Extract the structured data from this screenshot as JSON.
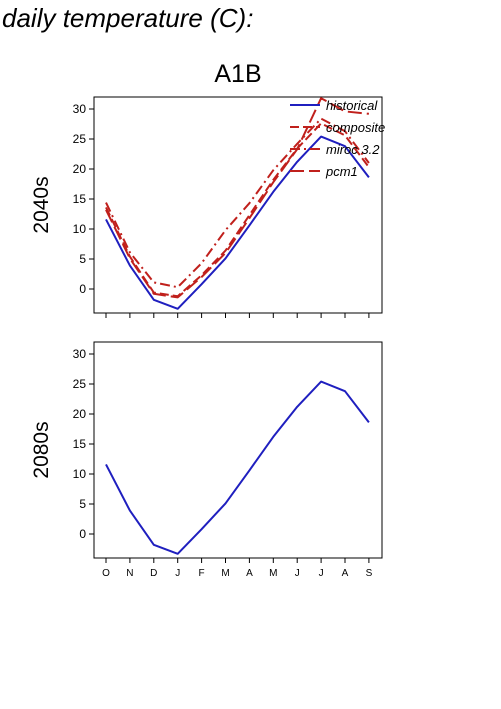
{
  "title": "daily temperature (C):",
  "chart_data": {
    "type": "line",
    "scenario": "A1B",
    "categories": [
      "O",
      "N",
      "D",
      "J",
      "F",
      "M",
      "A",
      "M",
      "J",
      "J",
      "A",
      "S"
    ],
    "ylim": [
      -4,
      32
    ],
    "yticks": [
      0,
      5,
      10,
      15,
      20,
      25,
      30
    ],
    "colors": {
      "historical": "#1f1fbf",
      "scenario": "#c0201c"
    },
    "panels": [
      {
        "row_label": "2040s",
        "legend": [
          "historical",
          "composite",
          "miroc 3.2",
          "pcm1"
        ],
        "series": [
          {
            "name": "historical",
            "style": "solid",
            "color": "#1f1fbf",
            "values": [
              11.6,
              3.9,
              -1.8,
              -3.3,
              0.8,
              5.1,
              10.6,
              16.2,
              21.2,
              25.4,
              23.8,
              18.6
            ]
          },
          {
            "name": "composite",
            "style": "dash",
            "color": "#c0201c",
            "values": [
              13.6,
              5.4,
              -0.6,
              -1.2,
              2.3,
              6.4,
              12.3,
              18.2,
              23.4,
              27.6,
              25.6,
              20.3
            ]
          },
          {
            "name": "miroc 3.2",
            "style": "dashdot",
            "color": "#c0201c",
            "values": [
              14.4,
              6.1,
              1.1,
              0.3,
              4.3,
              9.8,
              14.3,
              19.8,
              24.2,
              28.4,
              26.3,
              21.0
            ]
          },
          {
            "name": "pcm1",
            "style": "longdash",
            "color": "#c0201c",
            "values": [
              13.2,
              5.1,
              -0.8,
              -1.4,
              2.0,
              6.0,
              11.8,
              17.8,
              23.3,
              31.8,
              29.6,
              29.2
            ]
          }
        ]
      },
      {
        "row_label": "2080s",
        "legend": [],
        "series": [
          {
            "name": "historical",
            "style": "solid",
            "color": "#1f1fbf",
            "values": [
              11.6,
              3.9,
              -1.8,
              -3.3,
              0.8,
              5.1,
              10.6,
              16.2,
              21.2,
              25.4,
              23.8,
              18.6
            ]
          }
        ]
      }
    ]
  }
}
